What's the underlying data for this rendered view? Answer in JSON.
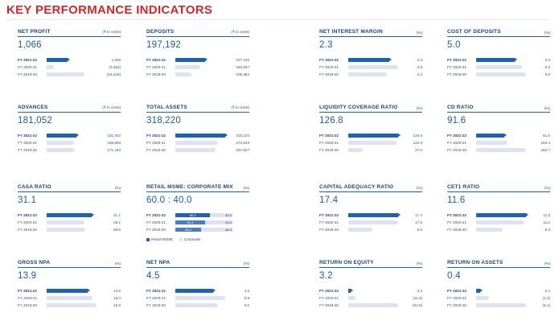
{
  "header": {
    "title": "KEY PERFORMANCE INDICATORS"
  },
  "kpis": [
    {
      "title": "NET PROFIT",
      "unit": "(₹ in crore)",
      "value": "1,066",
      "rows": [
        {
          "label": "FY 2021-22",
          "value": "1,066",
          "fill": 0.42
        },
        {
          "label": "FY 2020-21",
          "value": "(3,462)",
          "fill": 0.14
        },
        {
          "label": "FY 2019-20",
          "value": "(16,418)",
          "fill": 0.75
        }
      ]
    },
    {
      "title": "DEPOSITS",
      "unit": "(₹ in crore)",
      "value": "197,192",
      "rows": [
        {
          "label": "FY 2021-22",
          "value": "197,192",
          "fill": 0.6
        },
        {
          "label": "FY 2020-21",
          "value": "162,947",
          "fill": 0.5
        },
        {
          "label": "FY 2019-20",
          "value": "105,364",
          "fill": 0.32
        }
      ]
    },
    {
      "title": "NET INTEREST MARGIN",
      "unit": "(%)",
      "value": "2.3",
      "rows": [
        {
          "label": "FY 2021-22",
          "value": "2.3",
          "fill": 0.82
        },
        {
          "label": "FY 2020-21",
          "value": "2.8",
          "fill": 1.0
        },
        {
          "label": "FY 2019-20",
          "value": "2.2",
          "fill": 0.78
        }
      ]
    },
    {
      "title": "COST OF DEPOSITS",
      "unit": "(%)",
      "value": "5.0",
      "rows": [
        {
          "label": "FY 2021-22",
          "value": "5.0",
          "fill": 0.77
        },
        {
          "label": "FY 2020-21",
          "value": "6.0",
          "fill": 0.92
        },
        {
          "label": "FY 2019-20",
          "value": "6.5",
          "fill": 1.0
        }
      ]
    },
    {
      "title": "ADVANCES",
      "unit": "(₹ in crore)",
      "value": "181,052",
      "rows": [
        {
          "label": "FY 2021-22",
          "value": "181,052",
          "fill": 0.6
        },
        {
          "label": "FY 2020-21",
          "value": "166,893",
          "fill": 0.55
        },
        {
          "label": "FY 2019-20",
          "value": "171,443",
          "fill": 0.57
        }
      ]
    },
    {
      "title": "TOTAL ASSETS",
      "unit": "(₹ in crore)",
      "value": "318,220",
      "rows": [
        {
          "label": "FY 2021-22",
          "value": "318,220",
          "fill": 1.0
        },
        {
          "label": "FY 2020-21",
          "value": "273,543",
          "fill": 0.86
        },
        {
          "label": "FY 2019-20",
          "value": "257,827",
          "fill": 0.81
        }
      ]
    },
    {
      "title": "LIQUIDITY COVERAGE RATIO",
      "unit": "(%)",
      "value": "126.8",
      "rows": [
        {
          "label": "FY 2021-22",
          "value": "126.8",
          "fill": 1.0
        },
        {
          "label": "FY 2020-21",
          "value": "122.3",
          "fill": 0.96
        },
        {
          "label": "FY 2019-20",
          "value": "37.0",
          "fill": 0.29
        }
      ]
    },
    {
      "title": "CD RATIO",
      "unit": "(%)",
      "value": "91.6",
      "rows": [
        {
          "label": "FY 2021-22",
          "value": "91.6",
          "fill": 0.56
        },
        {
          "label": "FY 2020-21",
          "value": "102.4",
          "fill": 0.63
        },
        {
          "label": "FY 2019-20",
          "value": "162.7",
          "fill": 1.0
        }
      ]
    },
    {
      "title": "CASA RATIO",
      "unit": "(%)",
      "value": "31.1",
      "rows": [
        {
          "label": "FY 2021-22",
          "value": "31.1",
          "fill": 0.9
        },
        {
          "label": "FY 2020-21",
          "value": "26.1",
          "fill": 0.76
        },
        {
          "label": "FY 2019-20",
          "value": "26.6",
          "fill": 0.77
        }
      ]
    },
    {
      "title": "CAPITAL ADEQUACY RATIO",
      "unit": "(%)",
      "value": "17.4",
      "rows": [
        {
          "label": "FY 2021-22",
          "value": "17.4",
          "fill": 1.0
        },
        {
          "label": "FY 2020-21",
          "value": "17.5",
          "fill": 1.0
        },
        {
          "label": "FY 2019-20",
          "value": "8.5",
          "fill": 0.49
        }
      ]
    },
    {
      "title": "CET1 RATIO",
      "unit": "(%)",
      "value": "11.6",
      "rows": [
        {
          "label": "FY 2021-22",
          "value": "11.6",
          "fill": 1.0
        },
        {
          "label": "FY 2020-21",
          "value": "11.2",
          "fill": 0.97
        },
        {
          "label": "FY 2019-20",
          "value": "6.3",
          "fill": 0.54
        }
      ]
    },
    {
      "title": "GROSS NPA",
      "unit": "(%)",
      "value": "13.9",
      "rows": [
        {
          "label": "FY 2021-22",
          "value": "13.9",
          "fill": 0.83
        },
        {
          "label": "FY 2020-21",
          "value": "15.4",
          "fill": 0.92
        },
        {
          "label": "FY 2019-20",
          "value": "16.8",
          "fill": 1.0
        }
      ]
    },
    {
      "title": "NET NPA",
      "unit": "(%)",
      "value": "4.5",
      "rows": [
        {
          "label": "FY 2021-22",
          "value": "4.5",
          "fill": 0.76
        },
        {
          "label": "FY 2020-21",
          "value": "5.9",
          "fill": 1.0
        },
        {
          "label": "FY 2019-20",
          "value": "5.0",
          "fill": 0.85
        }
      ]
    },
    {
      "title": "RETURN ON EQUITY",
      "unit": "(%)",
      "value": "3.2",
      "rows": [
        {
          "label": "FY 2021-22",
          "value": "3.2",
          "fill": 0.04
        },
        {
          "label": "FY 2020-21",
          "value": "(11.4)",
          "fill": 0.14
        },
        {
          "label": "FY 2019-20",
          "value": "(81.8)",
          "fill": 1.0
        }
      ]
    },
    {
      "title": "RETURN ON ASSETS",
      "unit": "(%)",
      "value": "0.4",
      "rows": [
        {
          "label": "FY 2021-22",
          "value": "0.4",
          "fill": 0.08
        },
        {
          "label": "FY 2020-21",
          "value": "(1.3)",
          "fill": 0.25
        },
        {
          "label": "FY 2019-20",
          "value": "(5.1)",
          "fill": 1.0
        }
      ]
    }
  ],
  "mix": {
    "title": "RETAIL MSME: CORPORATE MIX",
    "unit": "(%)",
    "value": "60.0 : 40.0",
    "rows": [
      {
        "label": "FY 2021-22",
        "retail": "60.0",
        "corporate": "40.0",
        "retail_share": 0.6
      },
      {
        "label": "FY 2020-21",
        "retail": "51.0",
        "corporate": "49.0",
        "retail_share": 0.51
      },
      {
        "label": "FY 2019-20",
        "retail": "44.0",
        "corporate": "56.0",
        "retail_share": 0.44
      }
    ],
    "legend": {
      "retail": "Retail MSME",
      "corporate": "Corporate"
    }
  },
  "colors": {
    "accent": "#1e63ad",
    "bar_light": "#dfe3f1",
    "title_red": "#d7262b",
    "mix_prev": "#4a7cc0"
  }
}
